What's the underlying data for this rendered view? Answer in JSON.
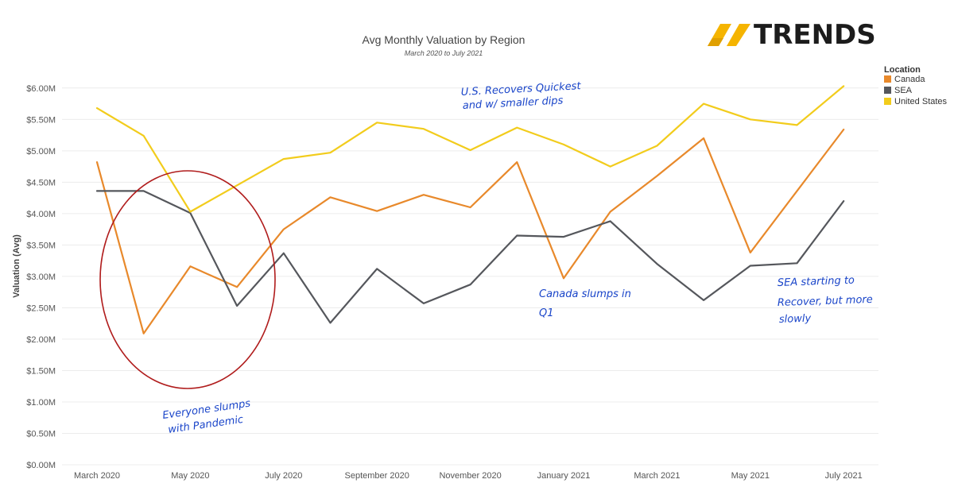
{
  "chart_data": {
    "type": "line",
    "title": "Avg Monthly Valuation by Region",
    "subtitle": "March 2020 to July 2021",
    "ylabel": "Valuation (Avg)",
    "xlabel": "",
    "ylim": [
      0,
      6.2
    ],
    "y_ticks": [
      {
        "value": 0,
        "label": "$0.00M"
      },
      {
        "value": 0.5,
        "label": "$0.50M"
      },
      {
        "value": 1.0,
        "label": "$1.00M"
      },
      {
        "value": 1.5,
        "label": "$1.50M"
      },
      {
        "value": 2.0,
        "label": "$2.00M"
      },
      {
        "value": 2.5,
        "label": "$2.50M"
      },
      {
        "value": 3.0,
        "label": "$3.00M"
      },
      {
        "value": 3.5,
        "label": "$3.50M"
      },
      {
        "value": 4.0,
        "label": "$4.00M"
      },
      {
        "value": 4.5,
        "label": "$4.50M"
      },
      {
        "value": 5.0,
        "label": "$5.00M"
      },
      {
        "value": 5.5,
        "label": "$5.50M"
      },
      {
        "value": 6.0,
        "label": "$6.00M"
      }
    ],
    "x": [
      "2020-03",
      "2020-04",
      "2020-05",
      "2020-06",
      "2020-07",
      "2020-08",
      "2020-09",
      "2020-10",
      "2020-11",
      "2020-12",
      "2021-01",
      "2021-02",
      "2021-03",
      "2021-04",
      "2021-05",
      "2021-06",
      "2021-07"
    ],
    "x_tick_labels": [
      {
        "x": "2020-03",
        "label": "March 2020"
      },
      {
        "x": "2020-05",
        "label": "May 2020"
      },
      {
        "x": "2020-07",
        "label": "July 2020"
      },
      {
        "x": "2020-09",
        "label": "September 2020"
      },
      {
        "x": "2020-11",
        "label": "November 2020"
      },
      {
        "x": "2021-01",
        "label": "January 2021"
      },
      {
        "x": "2021-03",
        "label": "March 2021"
      },
      {
        "x": "2021-05",
        "label": "May 2021"
      },
      {
        "x": "2021-07",
        "label": "July 2021"
      }
    ],
    "grid": true,
    "legend_placement": "right",
    "legend_title": "Location",
    "series": [
      {
        "name": "Canada",
        "color": "#e8892b",
        "values": [
          4.82,
          2.09,
          3.16,
          2.83,
          3.75,
          4.26,
          4.04,
          4.3,
          4.1,
          4.82,
          2.97,
          4.03,
          4.6,
          5.2,
          3.38,
          4.36,
          5.34
        ]
      },
      {
        "name": "SEA",
        "color": "#55575c",
        "values": [
          4.36,
          4.36,
          4.01,
          2.53,
          3.37,
          2.26,
          3.12,
          2.57,
          2.87,
          3.65,
          3.63,
          3.88,
          3.2,
          2.62,
          3.17,
          3.21,
          4.2
        ]
      },
      {
        "name": "United States",
        "color": "#f2cc1c",
        "values": [
          5.68,
          5.24,
          4.03,
          4.45,
          4.87,
          4.97,
          5.45,
          5.35,
          5.01,
          5.37,
          5.1,
          4.75,
          5.08,
          5.75,
          5.5,
          5.41,
          6.03
        ]
      }
    ],
    "annotations": [
      {
        "lines": [
          "U.S. Recovers Quickest",
          "and w/ smaller dips"
        ]
      },
      {
        "lines": [
          "Everyone slumps",
          "with Pandemic"
        ]
      },
      {
        "lines": [
          "Canada slumps in",
          "Q1"
        ]
      },
      {
        "lines": [
          "SEA starting to",
          "Recover, but more",
          "slowly"
        ]
      }
    ]
  },
  "logo": {
    "text": "TRENDS",
    "accent_color": "#f5b400",
    "text_color": "#1c1c1c"
  },
  "colors": {
    "circle": "#b01c1c",
    "note": "#1a45c9"
  }
}
